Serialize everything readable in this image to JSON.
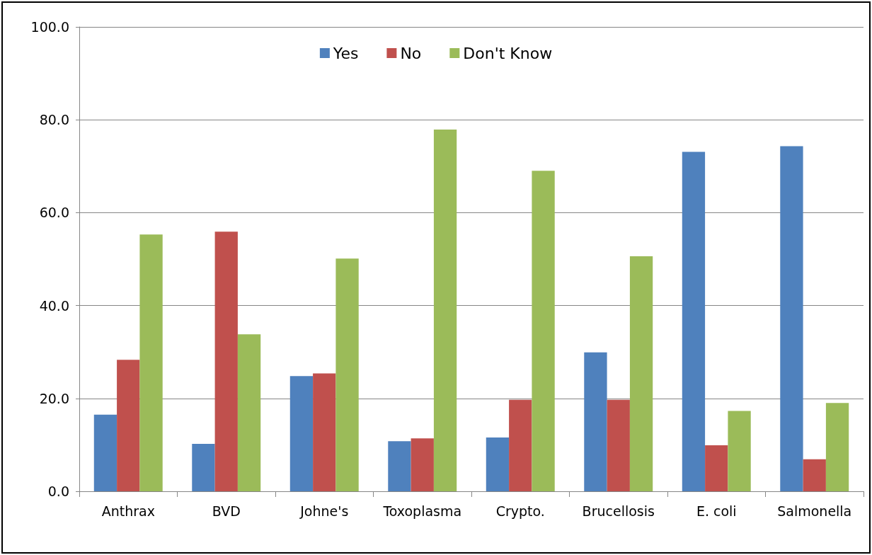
{
  "chart_data": {
    "type": "bar",
    "categories": [
      "Anthrax",
      "BVD",
      "Johne's",
      "Toxoplasma",
      "Crypto.",
      "Brucellosis",
      "E. coli",
      "Salmonella"
    ],
    "series": [
      {
        "name": "Yes",
        "color": "#4f81bd",
        "values": [
          16.5,
          10.2,
          24.8,
          10.8,
          11.6,
          29.9,
          73.1,
          74.3
        ]
      },
      {
        "name": "No",
        "color": "#c0504d",
        "values": [
          28.3,
          55.9,
          25.4,
          11.4,
          19.7,
          19.7,
          9.9,
          6.9
        ]
      },
      {
        "name": "Don't Know",
        "color": "#9bbb59",
        "values": [
          55.3,
          33.8,
          50.1,
          77.9,
          69.0,
          50.6,
          17.3,
          19.0
        ]
      }
    ],
    "ylim": [
      0,
      100
    ],
    "yticks": [
      {
        "value": 0,
        "label": "0.0"
      },
      {
        "value": 20,
        "label": "20.0"
      },
      {
        "value": 40,
        "label": "40.0"
      },
      {
        "value": 60,
        "label": "60.0"
      },
      {
        "value": 80,
        "label": "80.0"
      },
      {
        "value": 100,
        "label": "100.0"
      }
    ],
    "grid": "y",
    "legend": "top"
  }
}
